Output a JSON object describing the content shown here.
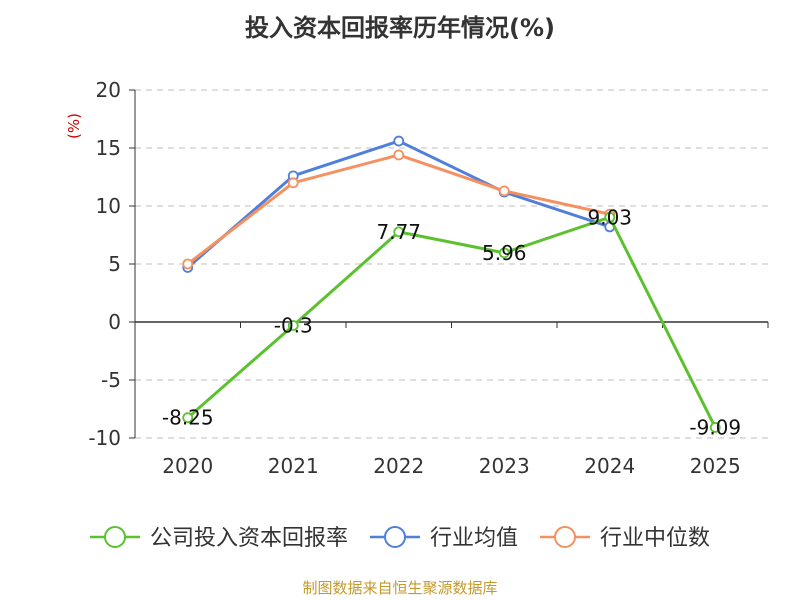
{
  "title": "投入资本回报率历年情况(%)",
  "source": "制图数据来自恒生聚源数据库",
  "chart_data": {
    "type": "line",
    "title": "投入资本回报率历年情况(%)",
    "ylabel": "(%)",
    "categories": [
      "2020",
      "2021",
      "2022",
      "2023",
      "2024",
      "2025"
    ],
    "ylim": [
      -10,
      20
    ],
    "yticks": [
      -10,
      -5,
      0,
      5,
      10,
      15,
      20
    ],
    "grid": true,
    "legend_position": "bottom",
    "series": [
      {
        "name": "公司投入资本回报率",
        "color": "#5cc12e",
        "values": [
          -8.25,
          -0.3,
          7.77,
          5.96,
          9.03,
          -9.09
        ],
        "labels": [
          "-8.25",
          "-0.3",
          "7.77",
          "5.96",
          "9.03",
          "-9.09"
        ]
      },
      {
        "name": "行业均值",
        "color": "#4f7fdb",
        "values": [
          4.7,
          12.6,
          15.6,
          11.2,
          8.2,
          null
        ]
      },
      {
        "name": "行业中位数",
        "color": "#f59060",
        "values": [
          5.0,
          12.0,
          14.4,
          11.3,
          9.3,
          null
        ]
      }
    ]
  }
}
